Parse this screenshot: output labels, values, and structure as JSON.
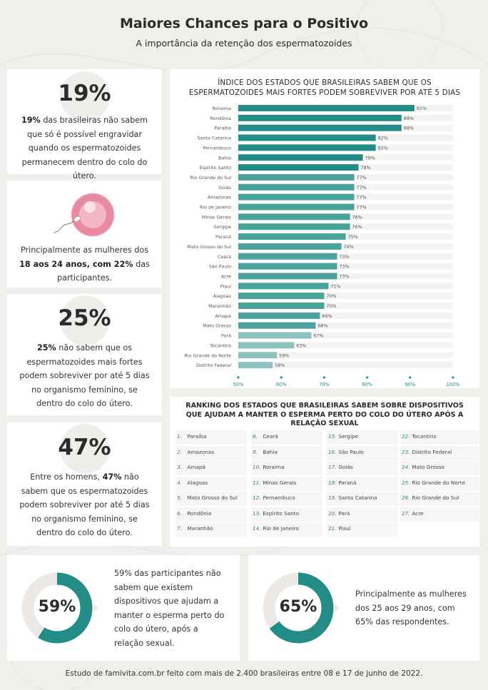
{
  "header": {
    "title": "Maiores Chances para o Positivo",
    "subtitle": "A importância da retenção dos espermatozoides"
  },
  "stat1": {
    "value": "19%",
    "bold": "19%",
    "text": " das brasileiras não sabem que só é possível engravidar quando os espermatozoides permanecem dentro do colo do útero."
  },
  "stat2": {
    "text_a": "Principalmente as mulheres dos ",
    "bold_a": "18 aos 24 anos, com 22%",
    "text_b": " das participantes."
  },
  "stat3": {
    "value": "25%",
    "bold": "25%",
    "text": " não sabem que os espermatozoides mais fortes podem sobreviver por até 5 dias no organismo feminino, se dentro do colo do útero."
  },
  "stat4": {
    "value": "47%",
    "text_a": "Entre os homens, ",
    "bold": "47%",
    "text_b": " não sabem que os espermatozoides podem sobreviver por até 5 dias no organismo feminino, se dentro do colo do útero."
  },
  "chart_data": {
    "type": "bar",
    "orientation": "horizontal",
    "title": "ÍNDICE DOS ESTADOS QUE BRASILEIRAS SABEM QUE OS ESPERMATOZOIDES MAIS FORTES PODEM SOBREVIVER POR ATÉ 5 DIAS",
    "categories": [
      "Roraima",
      "Rondônia",
      "Paraíba",
      "Santa Catarina",
      "Pernambuco",
      "Bahia",
      "Espírito Santo",
      "Rio Grande do Sul",
      "Goiás",
      "Amazonas",
      "Rio de Janeiro",
      "Minas Gerais",
      "Sergipe",
      "Paraná",
      "Mato Grosso do Sul",
      "Ceará",
      "São Paulo",
      "Acre",
      "Piauí",
      "Alagoas",
      "Maranhão",
      "Amapá",
      "Mato Grosso",
      "Pará",
      "Tocantins",
      "Rio Grande do Norte",
      "Distrito Federal"
    ],
    "values": [
      91,
      88,
      88,
      82,
      82,
      79,
      78,
      77,
      77,
      77,
      77,
      76,
      76,
      75,
      74,
      73,
      73,
      73,
      71,
      70,
      70,
      69,
      68,
      67,
      63,
      59,
      58
    ],
    "value_labels": [
      "91%",
      "88%",
      "88%",
      "82%",
      "82%",
      "79%",
      "78%",
      "77%",
      "77%",
      "77%",
      "77%",
      "76%",
      "76%",
      "75%",
      "74%",
      "73%",
      "73%",
      "73%",
      "71%",
      "70%",
      "70%",
      "69%",
      "68%",
      "67%",
      "63%",
      "59%",
      "58%"
    ],
    "xlim": [
      50,
      100
    ],
    "xticks": [
      "50%",
      "60%",
      "70%",
      "80%",
      "90%",
      "100%"
    ],
    "colors": {
      "dark": "#248c86",
      "light": "#8cc3bf"
    }
  },
  "ranking": {
    "title": "RANKING DOS ESTADOS QUE BRASILEIRAS SABEM SOBRE DISPOSITIVOS QUE AJUDAM A MANTER O ESPERMA PERTO DO COLO DO ÚTERO APÓS A RELAÇÃO SEXUAL",
    "columns": [
      [
        {
          "n": "1.",
          "name": "Paraíba"
        },
        {
          "n": "2.",
          "name": "Amazonas"
        },
        {
          "n": "3.",
          "name": "Amapá"
        },
        {
          "n": "4.",
          "name": "Alagoas"
        },
        {
          "n": "5.",
          "name": "Mato Grosso do Sul"
        },
        {
          "n": "6.",
          "name": "Rondônia"
        },
        {
          "n": "7.",
          "name": "Maranhão"
        }
      ],
      [
        {
          "n": "8.",
          "name": "Ceará"
        },
        {
          "n": "9.",
          "name": "Bahia"
        },
        {
          "n": "10.",
          "name": "Roraima"
        },
        {
          "n": "11.",
          "name": "Minas Gerais"
        },
        {
          "n": "12.",
          "name": "Pernambuco"
        },
        {
          "n": "13.",
          "name": "Espírito Santo"
        },
        {
          "n": "14.",
          "name": "Rio de Janeiro"
        }
      ],
      [
        {
          "n": "15.",
          "name": "Sergipe"
        },
        {
          "n": "16.",
          "name": "São Paulo"
        },
        {
          "n": "17.",
          "name": "Goiás"
        },
        {
          "n": "18.",
          "name": "Paraná"
        },
        {
          "n": "19.",
          "name": "Santa Catarina"
        },
        {
          "n": "20.",
          "name": "Pará"
        },
        {
          "n": "21.",
          "name": "Piauí"
        }
      ],
      [
        {
          "n": "22.",
          "name": "Tocantins"
        },
        {
          "n": "23.",
          "name": "Distrito Federal"
        },
        {
          "n": "24.",
          "name": "Mato Grosso"
        },
        {
          "n": "25.",
          "name": "Rio Grande do Norte"
        },
        {
          "n": "26.",
          "name": "Rio Grande do Sul"
        },
        {
          "n": "27.",
          "name": "Acre"
        }
      ]
    ]
  },
  "donut1": {
    "value": 59,
    "label": "59%",
    "text": "59% das participantes não sabem que existem dispositivos que ajudam a manter o esperma perto do colo do útero, após a relação sexual."
  },
  "donut2": {
    "value": 65,
    "label": "65%",
    "text": "Principalmente as mulheres dos 25 aos 29 anos, com 65% das respondentes."
  },
  "footer": {
    "text": "Estudo de famivita.com.br feito com mais de 2.400 brasileiras entre 08 e 17 de junho de 2022."
  },
  "colors": {
    "teal": "#248c86",
    "donut_track": "#ebe8e5",
    "pink": "#e88aa2"
  }
}
